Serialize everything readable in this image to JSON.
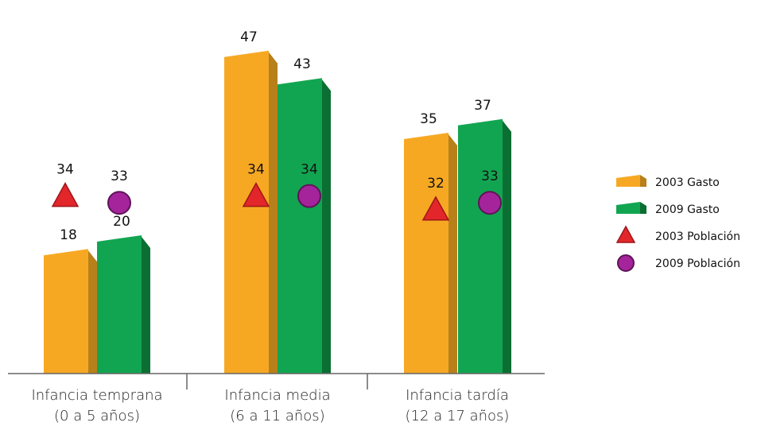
{
  "chart_data": {
    "type": "bar",
    "categories": [
      {
        "line1": "Infancia temprana",
        "line2": "(0 a 5 años)"
      },
      {
        "line1": "Infancia media",
        "line2": "(6 a 11 años)"
      },
      {
        "line1": "Infancia tardía",
        "line2": "(12 a 17 años)"
      }
    ],
    "bar_series": [
      {
        "name": "2003 Gasto",
        "values": [
          18,
          47,
          35
        ],
        "color": "#F7A823",
        "side_color": "#B8801A"
      },
      {
        "name": "2009 Gasto",
        "values": [
          20,
          43,
          37
        ],
        "color": "#12A551",
        "side_color": "#0B6E33"
      }
    ],
    "marker_series": [
      {
        "name": "2003 Población",
        "values": [
          34,
          34,
          32
        ],
        "marker": "triangle",
        "color": "#E3262A",
        "stroke": "#9E1619"
      },
      {
        "name": "2009 Población",
        "values": [
          33,
          34,
          33
        ],
        "marker": "circle",
        "color": "#A5249B",
        "stroke": "#5E1458"
      }
    ],
    "ylim": [
      0,
      50
    ],
    "grid": false,
    "legend_position": "right"
  }
}
